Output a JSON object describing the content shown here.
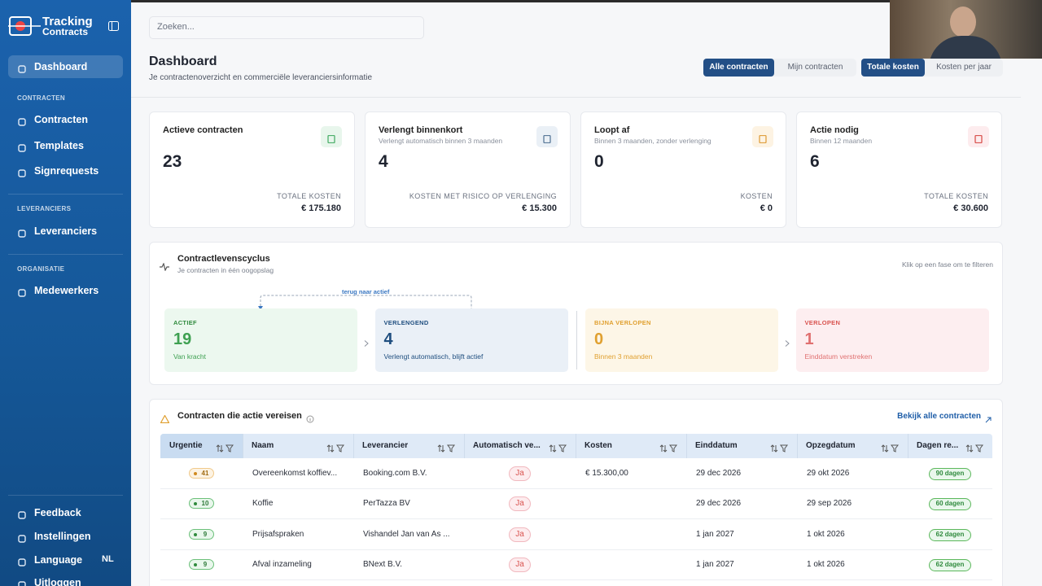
{
  "sidebar": {
    "logo_line1": "Tracking",
    "logo_line2": "Contracts",
    "main_item": "Dashboard",
    "sections": [
      {
        "title": "CONTRACTEN",
        "items": [
          "Contracten",
          "Templates",
          "Signrequests"
        ]
      },
      {
        "title": "LEVERANCIERS",
        "items": [
          "Leveranciers"
        ]
      },
      {
        "title": "ORGANISATIE",
        "items": [
          "Medewerkers"
        ]
      }
    ],
    "footer_items": [
      "Feedback",
      "Instellingen",
      "Language",
      "Uitloggen"
    ],
    "language_code": "NL"
  },
  "search_placeholder": "Zoeken...",
  "header": {
    "title": "Dashboard",
    "subtitle": "Je contractenoverzicht en commerciële leveranciersinformatie",
    "scope_toggle": [
      "Alle contracten",
      "Mijn contracten"
    ],
    "cost_toggle": [
      "Totale kosten",
      "Kosten per jaar"
    ]
  },
  "stats": [
    {
      "title": "Actieve contracten",
      "value": 23,
      "cost_label": "TOTALE KOSTEN",
      "cost": "€ 175.180"
    },
    {
      "title": "Verlengt binnenkort",
      "subtitle": "Verlengt automatisch binnen 3 maanden",
      "value": 4,
      "cost_label": "KOSTEN MET RISICO OP VERLENGING",
      "cost": "€ 15.300"
    },
    {
      "title": "Loopt af",
      "subtitle": "Binnen 3 maanden, zonder verlenging",
      "value": 0,
      "cost_label": "KOSTEN",
      "cost": "€ 0"
    },
    {
      "title": "Actie nodig",
      "subtitle": "Binnen 12 maanden",
      "value": 6,
      "cost_label": "TOTALE KOSTEN",
      "cost": "€ 30.600"
    }
  ],
  "lifecycle": {
    "title": "Contractlevenscyclus",
    "subtitle": "Je contracten in één oogopslag",
    "hint": "Klik op een fase om te filteren",
    "return_label": "terug naar actief",
    "stages": [
      {
        "label": "ACTIEF",
        "value": 19,
        "description": "Van kracht"
      },
      {
        "label": "VERLENGEND",
        "value": 4,
        "description": "Verlengt automatisch, blijft actief"
      },
      {
        "label": "BIJNA VERLOPEN",
        "value": 0,
        "description": "Binnen 3 maanden"
      },
      {
        "label": "VERLOPEN",
        "value": 1,
        "description": "Einddatum verstreken"
      }
    ]
  },
  "actions": {
    "title": "Contracten die actie vereisen",
    "link": "Bekijk alle contracten",
    "columns": [
      "Urgentie",
      "Naam",
      "Leverancier",
      "Automatisch ve...",
      "Kosten",
      "Einddatum",
      "Opzegdatum",
      "Dagen re..."
    ],
    "rows": [
      {
        "urgency": 41,
        "name": "Overeenkomst koffiev...",
        "supplier": "Booking.com B.V.",
        "auto_renew": "Ja",
        "cost": "€ 15.300,00",
        "end_date": "29 dec 2026",
        "notice_date": "29 okt 2026",
        "days_left": "90 dagen"
      },
      {
        "urgency": 10,
        "name": "Koffie",
        "supplier": "PerTazza BV",
        "auto_renew": "Ja",
        "cost": null,
        "end_date": "29 dec 2026",
        "notice_date": "29 sep 2026",
        "days_left": "60 dagen"
      },
      {
        "urgency": 9,
        "name": "Prijsafspraken",
        "supplier": "Vishandel Jan van As ...",
        "auto_renew": "Ja",
        "cost": null,
        "end_date": "1 jan 2027",
        "notice_date": "1 okt 2026",
        "days_left": "62 dagen"
      },
      {
        "urgency": 9,
        "name": "Afval inzameling",
        "supplier": "BNext B.V.",
        "auto_renew": "Ja",
        "cost": null,
        "end_date": "1 jan 2027",
        "notice_date": "1 okt 2026",
        "days_left": "62 dagen"
      }
    ]
  }
}
